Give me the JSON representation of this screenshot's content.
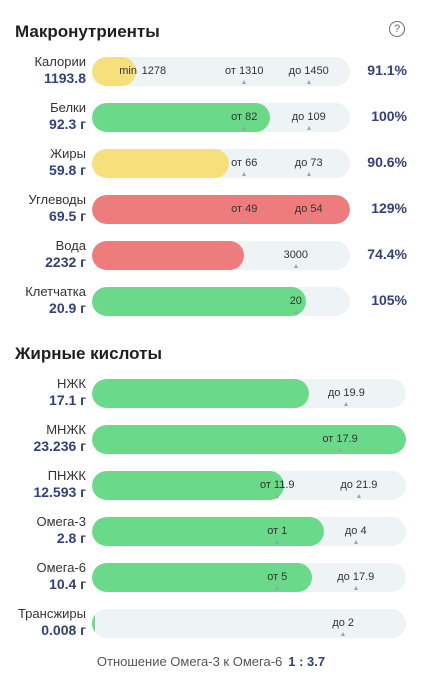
{
  "colors": {
    "yellow": "#f7df7c",
    "green": "#6bd98a",
    "red": "#ee7c7c",
    "track": "#eef3f6",
    "value": "#34407a"
  },
  "macro": {
    "title": "Макронутриенты",
    "help_icon": "?",
    "rows": [
      {
        "name": "Калории",
        "value": "1193.8",
        "percent": "91.1%",
        "fill": 0.17,
        "color": "yellow",
        "marks": [
          {
            "text": "min",
            "pos": 0.14
          },
          {
            "text": "1278",
            "pos": 0.24
          },
          {
            "text": "от 1310",
            "pos": 0.59
          },
          {
            "text": "до 1450",
            "pos": 0.84
          }
        ],
        "ticks": [
          0.59,
          0.84
        ]
      },
      {
        "name": "Белки",
        "value": "92.3 г",
        "percent": "100%",
        "fill": 0.69,
        "color": "green",
        "marks": [
          {
            "text": "от 82",
            "pos": 0.59
          },
          {
            "text": "до 109",
            "pos": 0.84
          }
        ],
        "ticks": [
          0.59,
          0.84
        ]
      },
      {
        "name": "Жиры",
        "value": "59.8 г",
        "percent": "90.6%",
        "fill": 0.53,
        "color": "yellow",
        "marks": [
          {
            "text": "от 66",
            "pos": 0.59
          },
          {
            "text": "до 73",
            "pos": 0.84
          }
        ],
        "ticks": [
          0.59,
          0.84
        ]
      },
      {
        "name": "Углеводы",
        "value": "69.5 г",
        "percent": "129%",
        "fill": 1.0,
        "color": "red",
        "marks": [
          {
            "text": "от 49",
            "pos": 0.59
          },
          {
            "text": "до 54",
            "pos": 0.84
          }
        ],
        "ticks": [
          0.59,
          0.84
        ]
      },
      {
        "name": "Вода",
        "value": "2232 г",
        "percent": "74.4%",
        "fill": 0.59,
        "color": "red",
        "marks": [
          {
            "text": "3000",
            "pos": 0.79
          }
        ],
        "ticks": [
          0.79
        ]
      },
      {
        "name": "Клетчатка",
        "value": "20.9 г",
        "percent": "105%",
        "fill": 0.83,
        "color": "green",
        "marks": [
          {
            "text": "20",
            "pos": 0.79
          }
        ],
        "ticks": [
          0.79
        ]
      }
    ]
  },
  "fatty": {
    "title": "Жирные кислоты",
    "rows": [
      {
        "name": "НЖК",
        "value": "17.1 г",
        "fill": 0.69,
        "color": "green",
        "marks": [
          {
            "text": "до 19.9",
            "pos": 0.81
          }
        ],
        "ticks": [
          0.81
        ]
      },
      {
        "name": "МНЖК",
        "value": "23.236 г",
        "fill": 1.0,
        "color": "green",
        "marks": [
          {
            "text": "от 17.9",
            "pos": 0.79
          }
        ],
        "ticks": [
          0.79
        ]
      },
      {
        "name": "ПНЖК",
        "value": "12.593 г",
        "fill": 0.61,
        "color": "green",
        "marks": [
          {
            "text": "от 11.9",
            "pos": 0.59
          },
          {
            "text": "до 21.9",
            "pos": 0.85
          }
        ],
        "ticks": [
          0.59,
          0.85
        ]
      },
      {
        "name": "Омега-3",
        "value": "2.8 г",
        "fill": 0.74,
        "color": "green",
        "marks": [
          {
            "text": "от 1",
            "pos": 0.59
          },
          {
            "text": "до 4",
            "pos": 0.84
          }
        ],
        "ticks": [
          0.59,
          0.84
        ]
      },
      {
        "name": "Омега-6",
        "value": "10.4 г",
        "fill": 0.7,
        "color": "green",
        "marks": [
          {
            "text": "от 5",
            "pos": 0.59
          },
          {
            "text": "до 17.9",
            "pos": 0.84
          }
        ],
        "ticks": [
          0.59,
          0.84
        ]
      },
      {
        "name": "Трансжиры",
        "value": "0.008 г",
        "fill": 0.008,
        "color": "green",
        "marks": [
          {
            "text": "до 2",
            "pos": 0.8
          }
        ],
        "ticks": [
          0.8
        ]
      }
    ]
  },
  "ratio": {
    "label": "Отношение Омега-3 к Омега-6",
    "value": "1 : 3.7"
  }
}
